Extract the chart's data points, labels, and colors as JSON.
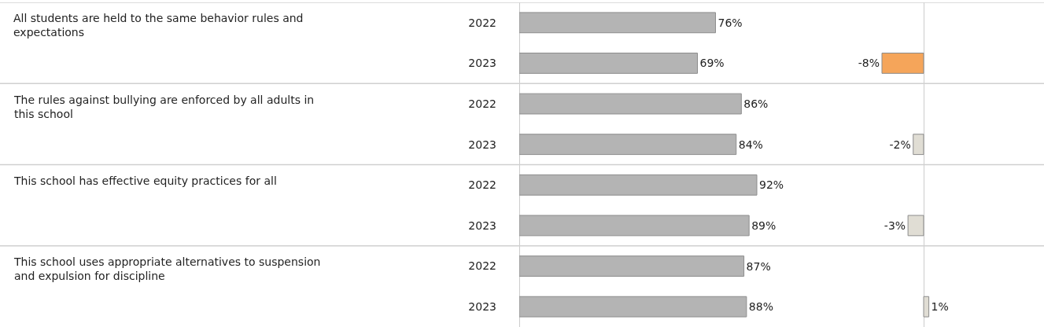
{
  "chart_data": [
    {
      "type": "bar",
      "orientation": "horizontal",
      "categories": [
        "2022",
        "2023",
        "2022",
        "2023",
        "2022",
        "2023",
        "2022",
        "2023"
      ],
      "values": [
        76,
        69,
        86,
        84,
        92,
        89,
        87,
        88
      ],
      "value_labels": [
        "76%",
        "69%",
        "86%",
        "84%",
        "92%",
        "89%",
        "87%",
        "88%"
      ],
      "color": "#b4b4b4",
      "tick_labels": "y",
      "annotations": [
        "All students are held to the same behavior rules and expectations",
        "The rules against bullying are enforced by all adults in this school",
        "This school has effective equity practices for all",
        "This school uses appropriate alternatives to suspension and expulsion for discipline"
      ]
    },
    {
      "type": "bar",
      "orientation": "horizontal",
      "categories": [
        null,
        null,
        null,
        null,
        null,
        null,
        null,
        null
      ],
      "values": [
        null,
        -8,
        null,
        -2,
        null,
        -3,
        null,
        1
      ],
      "value_labels": [
        null,
        "-8%",
        null,
        "-2%",
        null,
        "-3%",
        null,
        "1%"
      ],
      "colors": [
        "#e0ddd4",
        "#f5a55a",
        "#e0ddd4",
        "#e0ddd4",
        "#e0ddd4",
        "#e0ddd4",
        "#e0ddd4",
        "#e0ddd4"
      ],
      "tick_labels": false
    }
  ]
}
